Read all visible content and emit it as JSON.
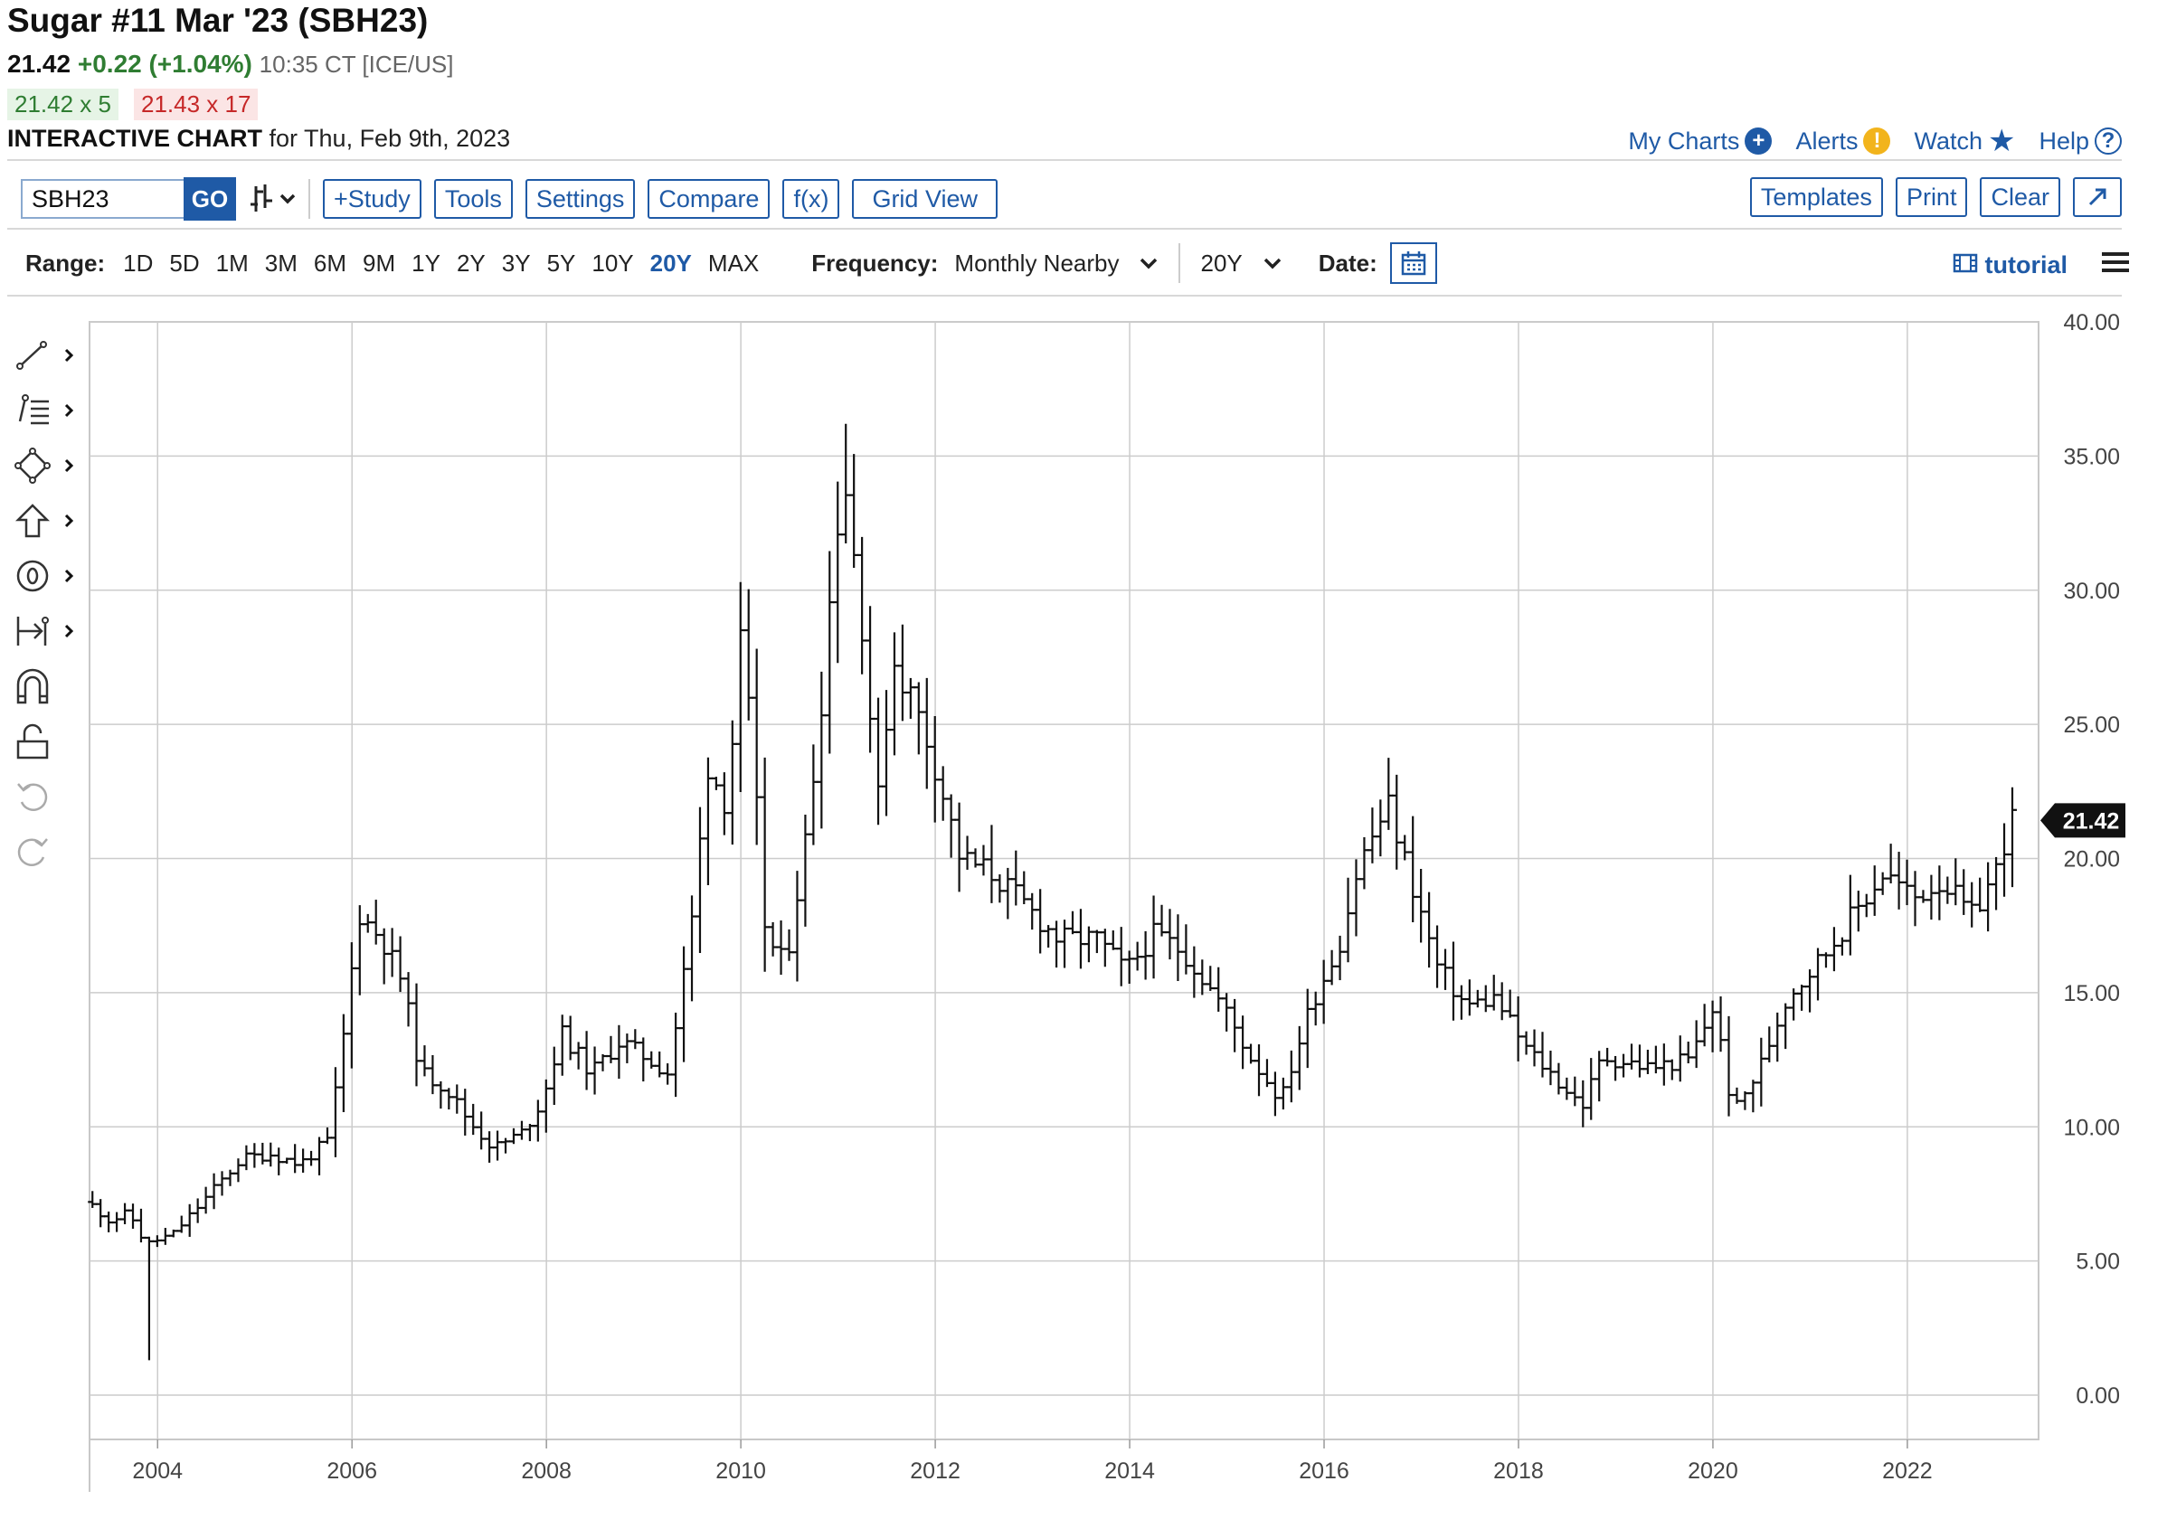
{
  "header": {
    "title": "Sugar #11 Mar '23 (SBH23)",
    "last": "21.42",
    "change": "+0.22 (+1.04%)",
    "time_exchange": "10:35 CT [ICE/US]",
    "bid": "21.42 x 5",
    "ask": "21.43 x 17",
    "chart_label": "INTERACTIVE CHART",
    "chart_date": "for Thu, Feb 9th, 2023"
  },
  "toplinks": {
    "my_charts": "My Charts",
    "alerts": "Alerts",
    "watch": "Watch",
    "help": "Help"
  },
  "toolbar": {
    "symbol_value": "SBH23",
    "go": "GO",
    "study": "+Study",
    "tools": "Tools",
    "settings": "Settings",
    "compare": "Compare",
    "fx": "f(x)",
    "grid_view": "Grid View",
    "templates": "Templates",
    "print": "Print",
    "clear": "Clear"
  },
  "rangebar": {
    "range_label": "Range:",
    "ranges": [
      "1D",
      "5D",
      "1M",
      "3M",
      "6M",
      "9M",
      "1Y",
      "2Y",
      "3Y",
      "5Y",
      "10Y",
      "20Y",
      "MAX"
    ],
    "active_range": "20Y",
    "frequency_label": "Frequency:",
    "frequency_value": "Monthly Nearby",
    "period_value": "20Y",
    "date_label": "Date:",
    "tutorial": "tutorial"
  },
  "drawing_tools": [
    "line-tool-icon",
    "fib-tool-icon",
    "shape-tool-icon",
    "arrow-tool-icon",
    "annotation-tool-icon",
    "measure-tool-icon",
    "magnet-icon",
    "unlock-icon",
    "undo-icon",
    "redo-icon"
  ],
  "colors": {
    "accent": "#1f5aa6",
    "up": "#2f7d32",
    "down": "#c62828",
    "bars": "#111111"
  },
  "chart_data": {
    "type": "ohlc",
    "frequency": "monthly",
    "last_price_label": "21.42",
    "y_ticks": [
      "0.00",
      "5.00",
      "10.00",
      "15.00",
      "20.00",
      "25.00",
      "30.00",
      "35.00",
      "40.00"
    ],
    "ylim": [
      0,
      40
    ],
    "x_ticks": [
      "2004",
      "2006",
      "2008",
      "2010",
      "2012",
      "2014",
      "2016",
      "2018",
      "2020",
      "2022"
    ],
    "xlim": [
      2003.3,
      2023.35
    ],
    "grid": true,
    "anchors": [
      [
        2003.33,
        7.2
      ],
      [
        2003.55,
        6.5
      ],
      [
        2003.75,
        6.8
      ],
      [
        2003.92,
        5.6
      ],
      [
        2004.05,
        5.8
      ],
      [
        2004.2,
        6.0
      ],
      [
        2004.45,
        7.0
      ],
      [
        2004.65,
        7.8
      ],
      [
        2004.9,
        8.8
      ],
      [
        2005.2,
        9.0
      ],
      [
        2005.5,
        8.6
      ],
      [
        2005.8,
        9.5
      ],
      [
        2006.0,
        14.5
      ],
      [
        2006.1,
        18.0
      ],
      [
        2006.35,
        17.0
      ],
      [
        2006.55,
        15.5
      ],
      [
        2006.75,
        12.0
      ],
      [
        2007.0,
        11.5
      ],
      [
        2007.25,
        10.2
      ],
      [
        2007.5,
        9.2
      ],
      [
        2007.8,
        9.8
      ],
      [
        2008.0,
        11.0
      ],
      [
        2008.2,
        13.5
      ],
      [
        2008.5,
        12.0
      ],
      [
        2008.8,
        13.2
      ],
      [
        2009.1,
        12.5
      ],
      [
        2009.3,
        12.0
      ],
      [
        2009.55,
        18.0
      ],
      [
        2009.7,
        23.5
      ],
      [
        2009.9,
        22.0
      ],
      [
        2010.05,
        28.5
      ],
      [
        2010.2,
        22.0
      ],
      [
        2010.3,
        17.0
      ],
      [
        2010.5,
        16.0
      ],
      [
        2010.7,
        20.5
      ],
      [
        2010.85,
        25.0
      ],
      [
        2011.0,
        31.5
      ],
      [
        2011.1,
        34.5
      ],
      [
        2011.3,
        28.5
      ],
      [
        2011.45,
        22.0
      ],
      [
        2011.6,
        27.5
      ],
      [
        2011.8,
        26.0
      ],
      [
        2012.0,
        24.0
      ],
      [
        2012.3,
        20.0
      ],
      [
        2012.6,
        19.5
      ],
      [
        2012.9,
        18.5
      ],
      [
        2013.3,
        17.0
      ],
      [
        2013.7,
        17.0
      ],
      [
        2014.0,
        15.8
      ],
      [
        2014.3,
        17.2
      ],
      [
        2014.6,
        16.5
      ],
      [
        2015.0,
        14.5
      ],
      [
        2015.3,
        12.5
      ],
      [
        2015.6,
        11.0
      ],
      [
        2015.9,
        14.5
      ],
      [
        2016.2,
        16.8
      ],
      [
        2016.4,
        19.8
      ],
      [
        2016.7,
        22.0
      ],
      [
        2016.95,
        19.0
      ],
      [
        2017.2,
        16.0
      ],
      [
        2017.5,
        14.5
      ],
      [
        2017.8,
        14.8
      ],
      [
        2018.1,
        13.0
      ],
      [
        2018.5,
        11.5
      ],
      [
        2018.7,
        10.8
      ],
      [
        2018.9,
        12.6
      ],
      [
        2019.4,
        12.2
      ],
      [
        2019.8,
        12.5
      ],
      [
        2020.05,
        14.5
      ],
      [
        2020.25,
        10.5
      ],
      [
        2020.5,
        12.0
      ],
      [
        2020.8,
        14.8
      ],
      [
        2021.2,
        16.5
      ],
      [
        2021.5,
        18.0
      ],
      [
        2021.8,
        19.5
      ],
      [
        2022.1,
        18.5
      ],
      [
        2022.4,
        19.2
      ],
      [
        2022.7,
        17.8
      ],
      [
        2022.95,
        19.5
      ],
      [
        2023.1,
        21.4
      ]
    ],
    "peaks": [
      {
        "x": 2003.95,
        "low": 1.3
      },
      {
        "x": 2011.08,
        "high": 36.2
      }
    ]
  }
}
